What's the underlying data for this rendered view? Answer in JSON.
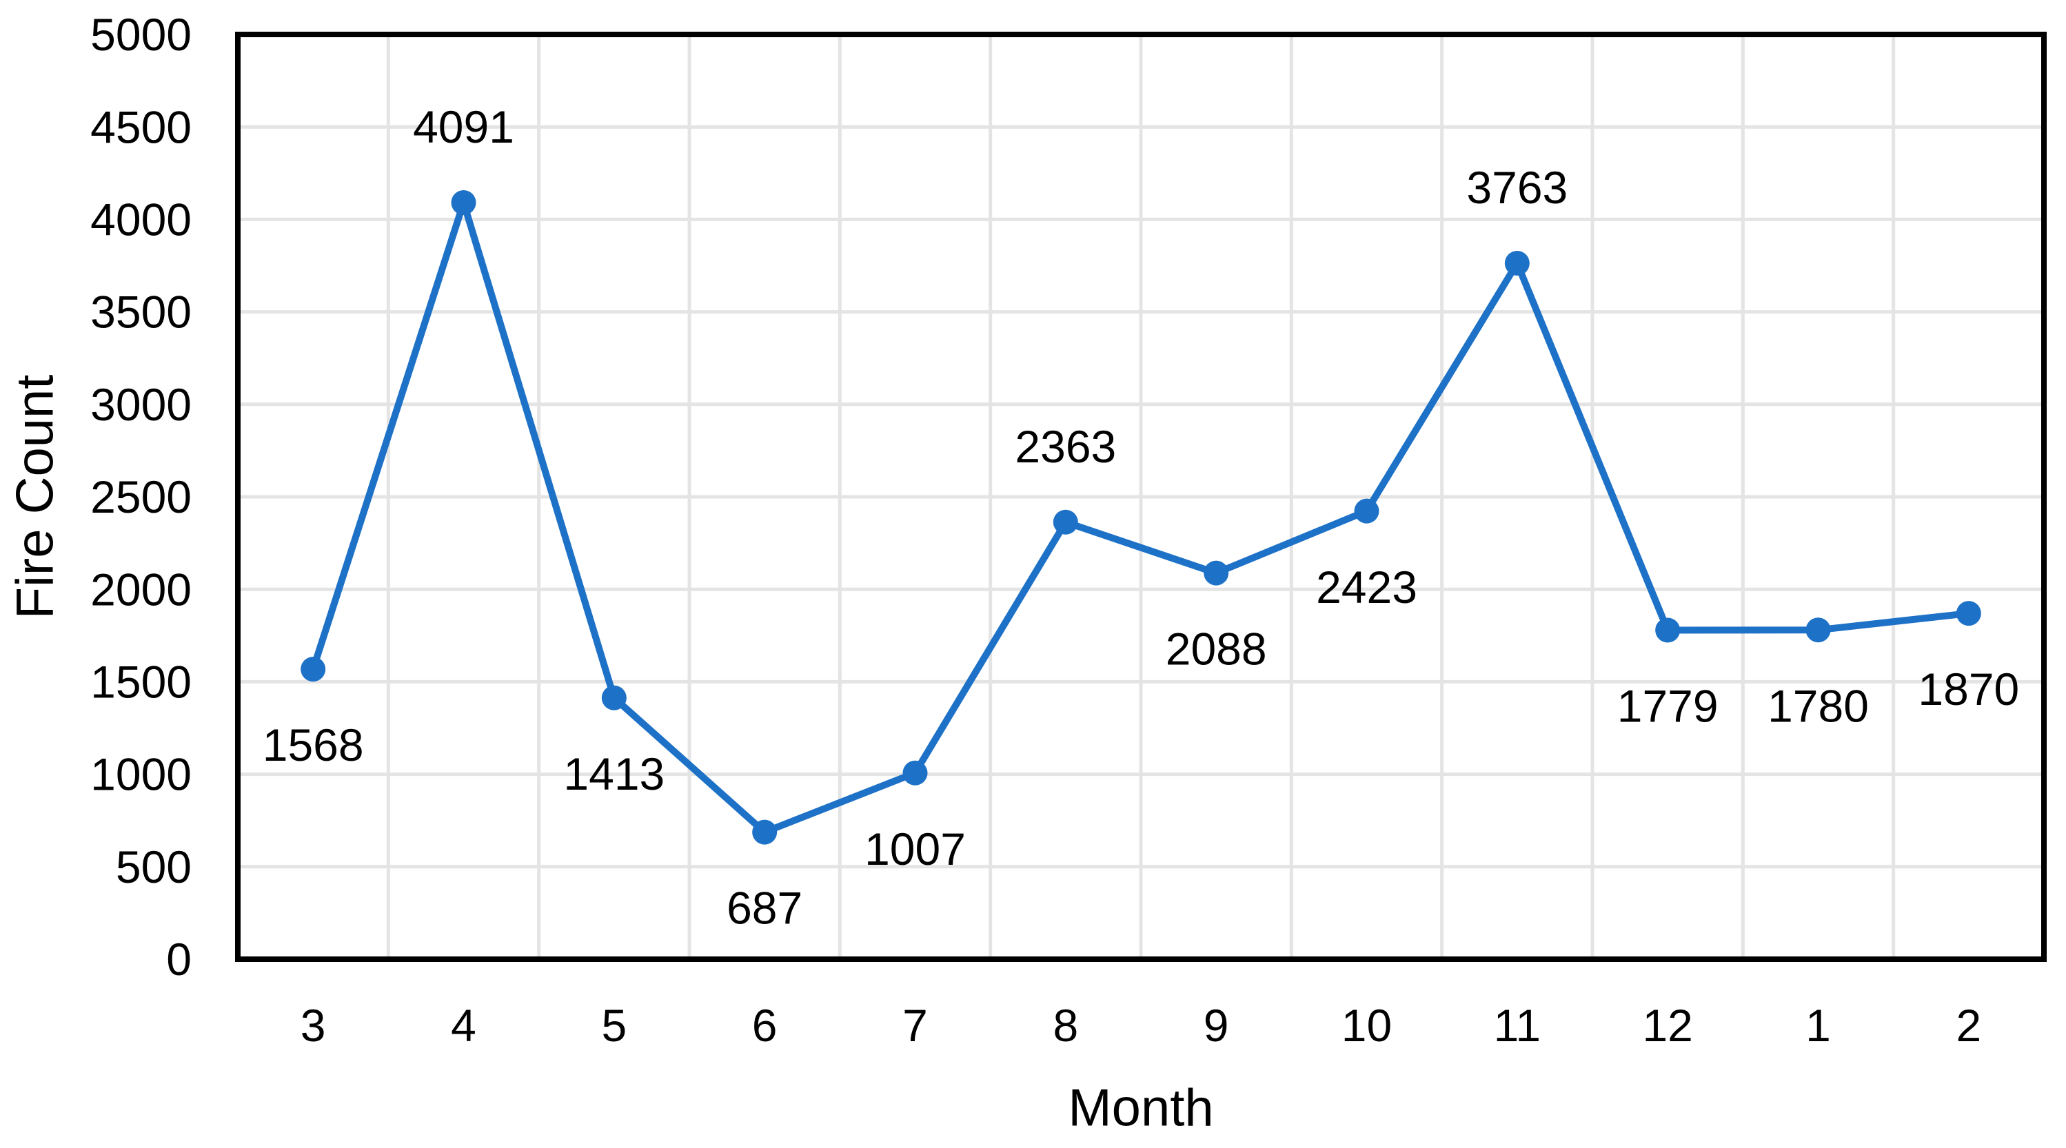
{
  "chart_data": {
    "type": "line",
    "title": "",
    "xlabel": "Month",
    "ylabel": "Fire Count",
    "categories": [
      "3",
      "4",
      "5",
      "6",
      "7",
      "8",
      "9",
      "10",
      "11",
      "12",
      "1",
      "2"
    ],
    "series": [
      {
        "name": "Fire Count",
        "values": [
          1568,
          4091,
          1413,
          687,
          1007,
          2363,
          2088,
          2423,
          3763,
          1779,
          1780,
          1870
        ]
      }
    ],
    "data_labels": [
      "1568",
      "4091",
      "1413",
      "687",
      "1007",
      "2363",
      "2088",
      "2423",
      "3763",
      "1779",
      "1780",
      "1870"
    ],
    "data_label_positions": [
      "below",
      "above",
      "below",
      "below",
      "below",
      "above",
      "below",
      "below",
      "above",
      "below",
      "below",
      "below"
    ],
    "y_ticks": [
      "0",
      "500",
      "1000",
      "1500",
      "2000",
      "2500",
      "3000",
      "3500",
      "4000",
      "4500",
      "5000"
    ],
    "ylim": [
      0,
      5000
    ],
    "ytick_step": 500,
    "grid": "both",
    "legend": "none",
    "marker": "circle",
    "axis_position": "between-categories",
    "colors": {
      "line": "#1D71C7",
      "marker": "#1D71C7",
      "grid": "#E4E4E4",
      "plot_border": "#000000",
      "text": "#000000",
      "background": "#FFFFFF"
    }
  }
}
